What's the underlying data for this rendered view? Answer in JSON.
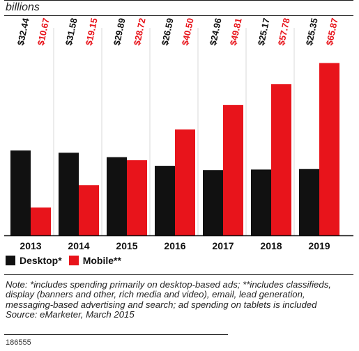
{
  "unit_label": "billions",
  "chart_data": {
    "type": "bar",
    "categories": [
      "2013",
      "2014",
      "2015",
      "2016",
      "2017",
      "2018",
      "2019"
    ],
    "series": [
      {
        "name": "Desktop*",
        "color": "#111111",
        "values": [
          32.44,
          31.58,
          29.89,
          26.59,
          24.96,
          25.17,
          25.35
        ],
        "labels": [
          "$32.44",
          "$31.58",
          "$29.89",
          "$26.59",
          "$24.96",
          "$25.17",
          "$25.35"
        ]
      },
      {
        "name": "Mobile**",
        "color": "#e8141b",
        "values": [
          10.67,
          19.15,
          28.72,
          40.5,
          49.81,
          57.78,
          65.87
        ],
        "labels": [
          "$10.67",
          "$19.15",
          "$28.72",
          "$40.50",
          "$49.81",
          "$57.78",
          "$65.87"
        ]
      }
    ],
    "ylim": [
      0,
      66
    ],
    "grid": false,
    "legend_position": "bottom-left"
  },
  "legend": {
    "desktop_label": "Desktop*",
    "mobile_label": "Mobile**",
    "desktop_color": "#111111",
    "mobile_color": "#e8141b"
  },
  "note": "Note: *includes spending primarily on desktop-based ads; **includes classifieds, display (banners and other, rich media and video), email, lead generation, messaging-based advertising and search; ad spending on tablets is included",
  "source": "Source: eMarketer, March 2015",
  "footer_id": "186555"
}
